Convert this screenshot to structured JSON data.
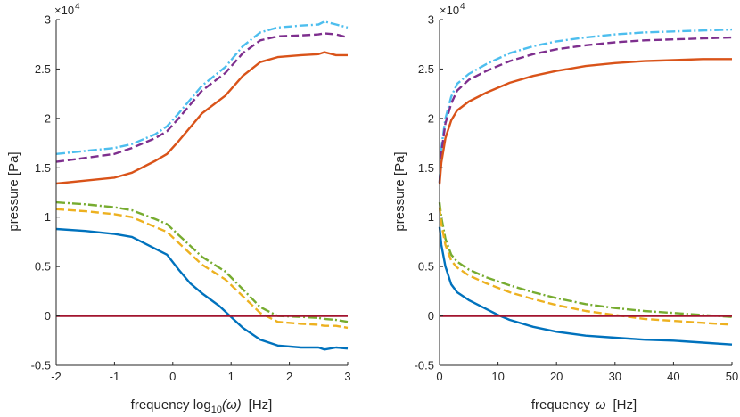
{
  "chart_data": [
    {
      "type": "line",
      "title": "",
      "xlabel_main": "frequency log",
      "xlabel_sub": "10",
      "xlabel_paren": "(ω)",
      "xlabel_unit": "[Hz]",
      "ylabel": "pressure [Pa]",
      "exponent_base": "×10",
      "exponent_power": "4",
      "xlim": [
        -2,
        3
      ],
      "ylim": [
        -0.5,
        3
      ],
      "xticks": [
        -2,
        -1,
        0,
        1,
        2,
        3
      ],
      "xtick_labels": [
        "-2",
        "-1",
        "0",
        "1",
        "2",
        "3"
      ],
      "yticks": [
        -0.5,
        0,
        0.5,
        1,
        1.5,
        2,
        2.5,
        3
      ],
      "ytick_labels": [
        "-0.5",
        "0",
        "0.5",
        "1",
        "1.5",
        "2",
        "2.5",
        "3"
      ],
      "grid": false,
      "series": [
        {
          "name": "upper-dashdot",
          "color": "#4DBEEE",
          "dash": "dashdot",
          "x": [
            -2,
            -1.5,
            -1,
            -0.7,
            -0.3,
            -0.1,
            0.1,
            0.5,
            0.9,
            1.2,
            1.5,
            1.8,
            2.2,
            2.5,
            2.6,
            2.8,
            3
          ],
          "y": [
            1.64,
            1.67,
            1.7,
            1.74,
            1.84,
            1.92,
            2.05,
            2.33,
            2.52,
            2.73,
            2.87,
            2.92,
            2.94,
            2.95,
            2.98,
            2.95,
            2.92
          ]
        },
        {
          "name": "upper-dashed",
          "color": "#7E2F8E",
          "dash": "dashed",
          "x": [
            -2,
            -1.5,
            -1,
            -0.7,
            -0.3,
            -0.1,
            0.1,
            0.5,
            0.9,
            1.2,
            1.5,
            1.8,
            2.2,
            2.5,
            2.6,
            2.8,
            3
          ],
          "y": [
            1.56,
            1.6,
            1.64,
            1.7,
            1.8,
            1.87,
            2.0,
            2.28,
            2.46,
            2.66,
            2.79,
            2.83,
            2.84,
            2.85,
            2.86,
            2.85,
            2.82
          ]
        },
        {
          "name": "upper-solid",
          "color": "#D95319",
          "dash": "solid",
          "x": [
            -2,
            -1.5,
            -1,
            -0.7,
            -0.3,
            -0.1,
            0.1,
            0.5,
            0.9,
            1.2,
            1.5,
            1.8,
            2.2,
            2.5,
            2.6,
            2.8,
            3
          ],
          "y": [
            1.34,
            1.37,
            1.4,
            1.45,
            1.57,
            1.64,
            1.77,
            2.05,
            2.23,
            2.43,
            2.57,
            2.62,
            2.64,
            2.65,
            2.67,
            2.64,
            2.64
          ]
        },
        {
          "name": "lower-dashdot",
          "color": "#77AC30",
          "dash": "dashdot",
          "x": [
            -2,
            -1.5,
            -1,
            -0.7,
            -0.3,
            -0.1,
            0.1,
            0.5,
            0.9,
            1.2,
            1.5,
            1.8,
            2.2,
            2.5,
            2.6,
            2.8,
            3
          ],
          "y": [
            1.15,
            1.13,
            1.1,
            1.07,
            0.98,
            0.93,
            0.82,
            0.6,
            0.45,
            0.27,
            0.09,
            0.0,
            -0.01,
            -0.02,
            -0.03,
            -0.04,
            -0.06
          ]
        },
        {
          "name": "lower-dashed",
          "color": "#EDB120",
          "dash": "dashed",
          "x": [
            -2,
            -1.5,
            -1,
            -0.7,
            -0.3,
            -0.1,
            0.1,
            0.5,
            0.9,
            1.2,
            1.5,
            1.8,
            2.2,
            2.5,
            2.6,
            2.8,
            3
          ],
          "y": [
            1.08,
            1.06,
            1.03,
            1.0,
            0.9,
            0.85,
            0.74,
            0.52,
            0.37,
            0.2,
            0.03,
            -0.06,
            -0.08,
            -0.09,
            -0.1,
            -0.1,
            -0.12
          ]
        },
        {
          "name": "lower-solid",
          "color": "#0072BD",
          "dash": "solid",
          "x": [
            -2,
            -1.5,
            -1,
            -0.7,
            -0.3,
            -0.1,
            0.1,
            0.3,
            0.5,
            0.8,
            1.0,
            1.2,
            1.5,
            1.8,
            2.2,
            2.5,
            2.6,
            2.8,
            3
          ],
          "y": [
            0.88,
            0.86,
            0.83,
            0.8,
            0.68,
            0.62,
            0.47,
            0.33,
            0.23,
            0.1,
            -0.01,
            -0.12,
            -0.24,
            -0.3,
            -0.32,
            -0.32,
            -0.34,
            -0.32,
            -0.33
          ]
        },
        {
          "name": "zero-line",
          "color": "#A2142F",
          "dash": "solid",
          "x": [
            -2,
            3
          ],
          "y": [
            0,
            0
          ]
        }
      ]
    },
    {
      "type": "line",
      "title": "",
      "xlabel_main": "frequency",
      "xlabel_sym": "ω",
      "xlabel_unit": "[Hz]",
      "ylabel": "pressure [Pa]",
      "exponent_base": "×10",
      "exponent_power": "4",
      "xlim": [
        0,
        50
      ],
      "ylim": [
        -0.5,
        3
      ],
      "xticks": [
        0,
        10,
        20,
        30,
        40,
        50
      ],
      "xtick_labels": [
        "0",
        "10",
        "20",
        "30",
        "40",
        "50"
      ],
      "yticks": [
        -0.5,
        0,
        0.5,
        1,
        1.5,
        2,
        2.5,
        3
      ],
      "ytick_labels": [
        "-0.5",
        "0",
        "0.5",
        "1",
        "1.5",
        "2",
        "2.5",
        "3"
      ],
      "grid": false,
      "series": [
        {
          "name": "upper-dashdot",
          "color": "#4DBEEE",
          "dash": "dashdot",
          "x": [
            0,
            0.3,
            1,
            2,
            3,
            5,
            8,
            12,
            16,
            20,
            25,
            30,
            35,
            40,
            45,
            50
          ],
          "y": [
            1.35,
            1.7,
            2.0,
            2.22,
            2.35,
            2.45,
            2.55,
            2.66,
            2.73,
            2.78,
            2.82,
            2.85,
            2.87,
            2.88,
            2.89,
            2.9
          ]
        },
        {
          "name": "upper-dashed",
          "color": "#7E2F8E",
          "dash": "dashed",
          "x": [
            0,
            0.3,
            1,
            2,
            3,
            5,
            8,
            12,
            16,
            20,
            25,
            30,
            35,
            40,
            45,
            50
          ],
          "y": [
            1.35,
            1.65,
            1.95,
            2.15,
            2.28,
            2.39,
            2.48,
            2.58,
            2.65,
            2.7,
            2.74,
            2.77,
            2.79,
            2.8,
            2.81,
            2.82
          ]
        },
        {
          "name": "upper-solid",
          "color": "#D95319",
          "dash": "solid",
          "x": [
            0,
            0.3,
            1,
            2,
            3,
            5,
            8,
            12,
            16,
            20,
            25,
            30,
            35,
            40,
            45,
            50
          ],
          "y": [
            1.33,
            1.55,
            1.8,
            1.98,
            2.08,
            2.17,
            2.26,
            2.36,
            2.43,
            2.48,
            2.53,
            2.56,
            2.58,
            2.59,
            2.6,
            2.6
          ]
        },
        {
          "name": "lower-dashdot",
          "color": "#77AC30",
          "dash": "dashdot",
          "x": [
            0,
            0.3,
            1,
            2,
            3,
            5,
            8,
            12,
            16,
            20,
            25,
            30,
            35,
            40,
            45,
            50
          ],
          "y": [
            1.15,
            1.0,
            0.78,
            0.62,
            0.55,
            0.47,
            0.39,
            0.31,
            0.24,
            0.18,
            0.12,
            0.08,
            0.05,
            0.03,
            0.01,
            -0.01
          ]
        },
        {
          "name": "lower-dashed",
          "color": "#EDB120",
          "dash": "dashed",
          "x": [
            0,
            0.3,
            1,
            2,
            3,
            5,
            8,
            12,
            16,
            20,
            25,
            30,
            35,
            40,
            45,
            50
          ],
          "y": [
            1.1,
            0.93,
            0.72,
            0.56,
            0.49,
            0.41,
            0.33,
            0.24,
            0.17,
            0.11,
            0.05,
            0.01,
            -0.03,
            -0.05,
            -0.07,
            -0.09
          ]
        },
        {
          "name": "lower-solid",
          "color": "#0072BD",
          "dash": "solid",
          "x": [
            0,
            0.3,
            1,
            2,
            3,
            5,
            8,
            10,
            12,
            16,
            20,
            25,
            30,
            35,
            40,
            45,
            50
          ],
          "y": [
            0.9,
            0.72,
            0.5,
            0.32,
            0.24,
            0.16,
            0.07,
            0.01,
            -0.04,
            -0.11,
            -0.16,
            -0.2,
            -0.22,
            -0.24,
            -0.25,
            -0.27,
            -0.29
          ]
        },
        {
          "name": "zero-line",
          "color": "#A2142F",
          "dash": "solid",
          "x": [
            0,
            50
          ],
          "y": [
            0,
            0
          ]
        }
      ]
    }
  ]
}
